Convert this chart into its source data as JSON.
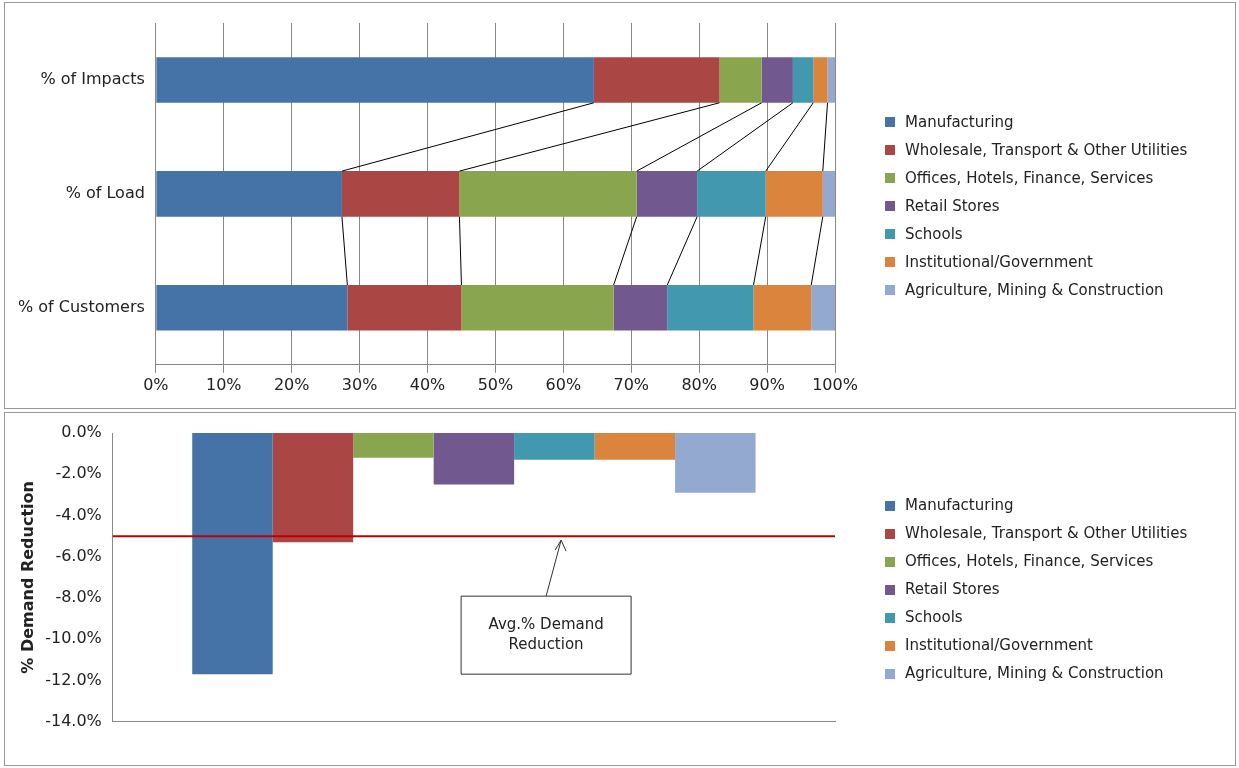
{
  "chart_data": [
    {
      "type": "bar",
      "orientation": "horizontal",
      "stacked": true,
      "categories": [
        "% of Impacts",
        "% of Load",
        "% of Customers"
      ],
      "series": [
        {
          "name": "Manufacturing",
          "color": "#4572a7",
          "values": [
            64.5,
            27.4,
            28.2
          ]
        },
        {
          "name": "Wholesale, Transport & Other Utilities",
          "color": "#aa4643",
          "values": [
            18.5,
            17.3,
            16.8
          ]
        },
        {
          "name": "Offices, Hotels, Finance, Services",
          "color": "#89a54e",
          "values": [
            6.2,
            26.1,
            22.4
          ]
        },
        {
          "name": "Retail Stores",
          "color": "#71588f",
          "values": [
            4.6,
            8.9,
            7.9
          ]
        },
        {
          "name": "Schools",
          "color": "#4198af",
          "values": [
            3.0,
            10.1,
            12.7
          ]
        },
        {
          "name": "Institutional/Government",
          "color": "#db843d",
          "values": [
            2.1,
            8.4,
            8.5
          ]
        },
        {
          "name": "Agriculture, Mining & Construction",
          "color": "#93a9cf",
          "values": [
            1.1,
            1.8,
            3.5
          ]
        }
      ],
      "xlim": [
        0,
        100
      ],
      "xticks": [
        {
          "value": 0,
          "label": "0%"
        },
        {
          "value": 10,
          "label": "10%"
        },
        {
          "value": 20,
          "label": "20%"
        },
        {
          "value": 30,
          "label": "30%"
        },
        {
          "value": 40,
          "label": "40%"
        },
        {
          "value": 50,
          "label": "50%"
        },
        {
          "value": 60,
          "label": "60%"
        },
        {
          "value": 70,
          "label": "70%"
        },
        {
          "value": 80,
          "label": "80%"
        },
        {
          "value": 90,
          "label": "90%"
        },
        {
          "value": 100,
          "label": "100%"
        }
      ],
      "grid": "x",
      "legend": "right"
    },
    {
      "type": "bar",
      "ylabel": "% Demand Reduction",
      "categories": [
        null
      ],
      "series": [
        {
          "name": "Manufacturing",
          "color": "#4572a7",
          "values": [
            -11.7
          ]
        },
        {
          "name": "Wholesale, Transport & Other Utilities",
          "color": "#aa4643",
          "values": [
            -5.3
          ]
        },
        {
          "name": "Offices, Hotels, Finance, Services",
          "color": "#89a54e",
          "values": [
            -1.2
          ]
        },
        {
          "name": "Retail Stores",
          "color": "#71588f",
          "values": [
            -2.5
          ]
        },
        {
          "name": "Schools",
          "color": "#4198af",
          "values": [
            -1.3
          ]
        },
        {
          "name": "Institutional/Government",
          "color": "#db843d",
          "values": [
            -1.3
          ]
        },
        {
          "name": "Agriculture, Mining & Construction",
          "color": "#93a9cf",
          "values": [
            -2.9
          ]
        }
      ],
      "ylim": [
        -14,
        0
      ],
      "yticks": [
        {
          "value": 0,
          "label": "0.0%"
        },
        {
          "value": -2,
          "label": "-2.0%"
        },
        {
          "value": -4,
          "label": "-4.0%"
        },
        {
          "value": -6,
          "label": "-6.0%"
        },
        {
          "value": -8,
          "label": "-8.0%"
        },
        {
          "value": -10,
          "label": "-10.0%"
        },
        {
          "value": -12,
          "label": "-12.0%"
        },
        {
          "value": -14,
          "label": "-14.0%"
        }
      ],
      "ref_lines": [
        {
          "axis": "y",
          "value": -5,
          "label": "Avg.% Demand Reduction",
          "color": "#c00000"
        }
      ],
      "grid": false,
      "legend": "right"
    }
  ]
}
